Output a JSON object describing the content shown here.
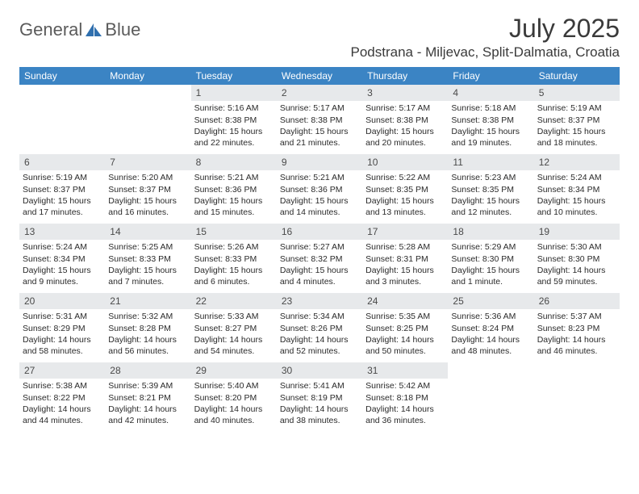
{
  "brand": {
    "name1": "General",
    "name2": "Blue"
  },
  "title": "July 2025",
  "location": "Podstrana - Miljevac, Split-Dalmatia, Croatia",
  "colors": {
    "header_bar": "#3b84c4",
    "header_text": "#ffffff",
    "num_bg": "#e7e9eb",
    "text": "#2a2a2a",
    "title_text": "#3a3a3a"
  },
  "dayNames": [
    "Sunday",
    "Monday",
    "Tuesday",
    "Wednesday",
    "Thursday",
    "Friday",
    "Saturday"
  ],
  "startOffset": 2,
  "days": [
    {
      "n": 1,
      "sr": "5:16 AM",
      "ss": "8:38 PM",
      "dl": "15 hours and 22 minutes."
    },
    {
      "n": 2,
      "sr": "5:17 AM",
      "ss": "8:38 PM",
      "dl": "15 hours and 21 minutes."
    },
    {
      "n": 3,
      "sr": "5:17 AM",
      "ss": "8:38 PM",
      "dl": "15 hours and 20 minutes."
    },
    {
      "n": 4,
      "sr": "5:18 AM",
      "ss": "8:38 PM",
      "dl": "15 hours and 19 minutes."
    },
    {
      "n": 5,
      "sr": "5:19 AM",
      "ss": "8:37 PM",
      "dl": "15 hours and 18 minutes."
    },
    {
      "n": 6,
      "sr": "5:19 AM",
      "ss": "8:37 PM",
      "dl": "15 hours and 17 minutes."
    },
    {
      "n": 7,
      "sr": "5:20 AM",
      "ss": "8:37 PM",
      "dl": "15 hours and 16 minutes."
    },
    {
      "n": 8,
      "sr": "5:21 AM",
      "ss": "8:36 PM",
      "dl": "15 hours and 15 minutes."
    },
    {
      "n": 9,
      "sr": "5:21 AM",
      "ss": "8:36 PM",
      "dl": "15 hours and 14 minutes."
    },
    {
      "n": 10,
      "sr": "5:22 AM",
      "ss": "8:35 PM",
      "dl": "15 hours and 13 minutes."
    },
    {
      "n": 11,
      "sr": "5:23 AM",
      "ss": "8:35 PM",
      "dl": "15 hours and 12 minutes."
    },
    {
      "n": 12,
      "sr": "5:24 AM",
      "ss": "8:34 PM",
      "dl": "15 hours and 10 minutes."
    },
    {
      "n": 13,
      "sr": "5:24 AM",
      "ss": "8:34 PM",
      "dl": "15 hours and 9 minutes."
    },
    {
      "n": 14,
      "sr": "5:25 AM",
      "ss": "8:33 PM",
      "dl": "15 hours and 7 minutes."
    },
    {
      "n": 15,
      "sr": "5:26 AM",
      "ss": "8:33 PM",
      "dl": "15 hours and 6 minutes."
    },
    {
      "n": 16,
      "sr": "5:27 AM",
      "ss": "8:32 PM",
      "dl": "15 hours and 4 minutes."
    },
    {
      "n": 17,
      "sr": "5:28 AM",
      "ss": "8:31 PM",
      "dl": "15 hours and 3 minutes."
    },
    {
      "n": 18,
      "sr": "5:29 AM",
      "ss": "8:30 PM",
      "dl": "15 hours and 1 minute."
    },
    {
      "n": 19,
      "sr": "5:30 AM",
      "ss": "8:30 PM",
      "dl": "14 hours and 59 minutes."
    },
    {
      "n": 20,
      "sr": "5:31 AM",
      "ss": "8:29 PM",
      "dl": "14 hours and 58 minutes."
    },
    {
      "n": 21,
      "sr": "5:32 AM",
      "ss": "8:28 PM",
      "dl": "14 hours and 56 minutes."
    },
    {
      "n": 22,
      "sr": "5:33 AM",
      "ss": "8:27 PM",
      "dl": "14 hours and 54 minutes."
    },
    {
      "n": 23,
      "sr": "5:34 AM",
      "ss": "8:26 PM",
      "dl": "14 hours and 52 minutes."
    },
    {
      "n": 24,
      "sr": "5:35 AM",
      "ss": "8:25 PM",
      "dl": "14 hours and 50 minutes."
    },
    {
      "n": 25,
      "sr": "5:36 AM",
      "ss": "8:24 PM",
      "dl": "14 hours and 48 minutes."
    },
    {
      "n": 26,
      "sr": "5:37 AM",
      "ss": "8:23 PM",
      "dl": "14 hours and 46 minutes."
    },
    {
      "n": 27,
      "sr": "5:38 AM",
      "ss": "8:22 PM",
      "dl": "14 hours and 44 minutes."
    },
    {
      "n": 28,
      "sr": "5:39 AM",
      "ss": "8:21 PM",
      "dl": "14 hours and 42 minutes."
    },
    {
      "n": 29,
      "sr": "5:40 AM",
      "ss": "8:20 PM",
      "dl": "14 hours and 40 minutes."
    },
    {
      "n": 30,
      "sr": "5:41 AM",
      "ss": "8:19 PM",
      "dl": "14 hours and 38 minutes."
    },
    {
      "n": 31,
      "sr": "5:42 AM",
      "ss": "8:18 PM",
      "dl": "14 hours and 36 minutes."
    }
  ],
  "labels": {
    "sunrise": "Sunrise:",
    "sunset": "Sunset:",
    "daylight": "Daylight:"
  }
}
